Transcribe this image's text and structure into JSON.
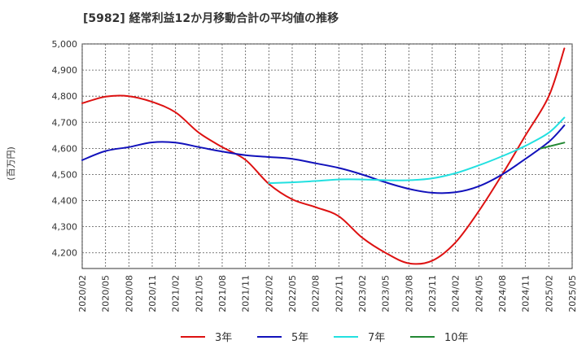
{
  "chart_data": {
    "type": "line",
    "title": "[5982]  経常利益12か月移動合計の平均値の推移",
    "ylabel": "(百万円)",
    "xlabel": "",
    "ylim": [
      4140,
      5000
    ],
    "yticks": [
      4200,
      4300,
      4400,
      4500,
      4600,
      4700,
      4800,
      4900,
      5000
    ],
    "ytick_labels": [
      "4,200",
      "4,300",
      "4,400",
      "4,500",
      "4,600",
      "4,700",
      "4,800",
      "4,900",
      "5,000"
    ],
    "xticks": [
      "2020/02",
      "2020/05",
      "2020/08",
      "2020/11",
      "2021/02",
      "2021/05",
      "2021/08",
      "2021/11",
      "2022/02",
      "2022/05",
      "2022/08",
      "2022/11",
      "2023/02",
      "2023/05",
      "2023/08",
      "2023/11",
      "2024/02",
      "2024/05",
      "2024/08",
      "2024/11",
      "2025/02",
      "2025/05"
    ],
    "grid": true,
    "legend_position": "bottom",
    "series": [
      {
        "name": "3年",
        "color": "#dd1111",
        "points": [
          [
            "2020/02",
            4773
          ],
          [
            "2020/05",
            4798
          ],
          [
            "2020/08",
            4800
          ],
          [
            "2020/11",
            4778
          ],
          [
            "2021/02",
            4738
          ],
          [
            "2021/05",
            4660
          ],
          [
            "2021/08",
            4605
          ],
          [
            "2021/11",
            4556
          ],
          [
            "2022/02",
            4464
          ],
          [
            "2022/05",
            4405
          ],
          [
            "2022/08",
            4375
          ],
          [
            "2022/11",
            4340
          ],
          [
            "2023/02",
            4258
          ],
          [
            "2023/05",
            4200
          ],
          [
            "2023/08",
            4160
          ],
          [
            "2023/11",
            4170
          ],
          [
            "2024/02",
            4240
          ],
          [
            "2024/05",
            4360
          ],
          [
            "2024/08",
            4500
          ],
          [
            "2024/11",
            4650
          ],
          [
            "2025/02",
            4800
          ],
          [
            "2025/04",
            4983
          ]
        ]
      },
      {
        "name": "5年",
        "color": "#1111bb",
        "points": [
          [
            "2020/02",
            4555
          ],
          [
            "2020/05",
            4590
          ],
          [
            "2020/08",
            4605
          ],
          [
            "2020/11",
            4623
          ],
          [
            "2021/02",
            4622
          ],
          [
            "2021/05",
            4605
          ],
          [
            "2021/08",
            4588
          ],
          [
            "2021/11",
            4574
          ],
          [
            "2022/02",
            4567
          ],
          [
            "2022/05",
            4560
          ],
          [
            "2022/08",
            4543
          ],
          [
            "2022/11",
            4525
          ],
          [
            "2023/02",
            4500
          ],
          [
            "2023/05",
            4470
          ],
          [
            "2023/08",
            4445
          ],
          [
            "2023/11",
            4430
          ],
          [
            "2024/02",
            4432
          ],
          [
            "2024/05",
            4455
          ],
          [
            "2024/08",
            4500
          ],
          [
            "2024/11",
            4560
          ],
          [
            "2025/02",
            4625
          ],
          [
            "2025/04",
            4688
          ]
        ]
      },
      {
        "name": "7年",
        "color": "#22e0e0",
        "points": [
          [
            "2022/02",
            4467
          ],
          [
            "2022/05",
            4470
          ],
          [
            "2022/08",
            4475
          ],
          [
            "2022/11",
            4481
          ],
          [
            "2023/02",
            4481
          ],
          [
            "2023/05",
            4478
          ],
          [
            "2023/08",
            4478
          ],
          [
            "2023/11",
            4485
          ],
          [
            "2024/02",
            4505
          ],
          [
            "2024/05",
            4535
          ],
          [
            "2024/08",
            4570
          ],
          [
            "2024/11",
            4610
          ],
          [
            "2025/02",
            4660
          ],
          [
            "2025/04",
            4718
          ]
        ]
      },
      {
        "name": "10年",
        "color": "#228833",
        "points": [
          [
            "2025/01",
            4600
          ],
          [
            "2025/04",
            4622
          ]
        ]
      }
    ]
  }
}
